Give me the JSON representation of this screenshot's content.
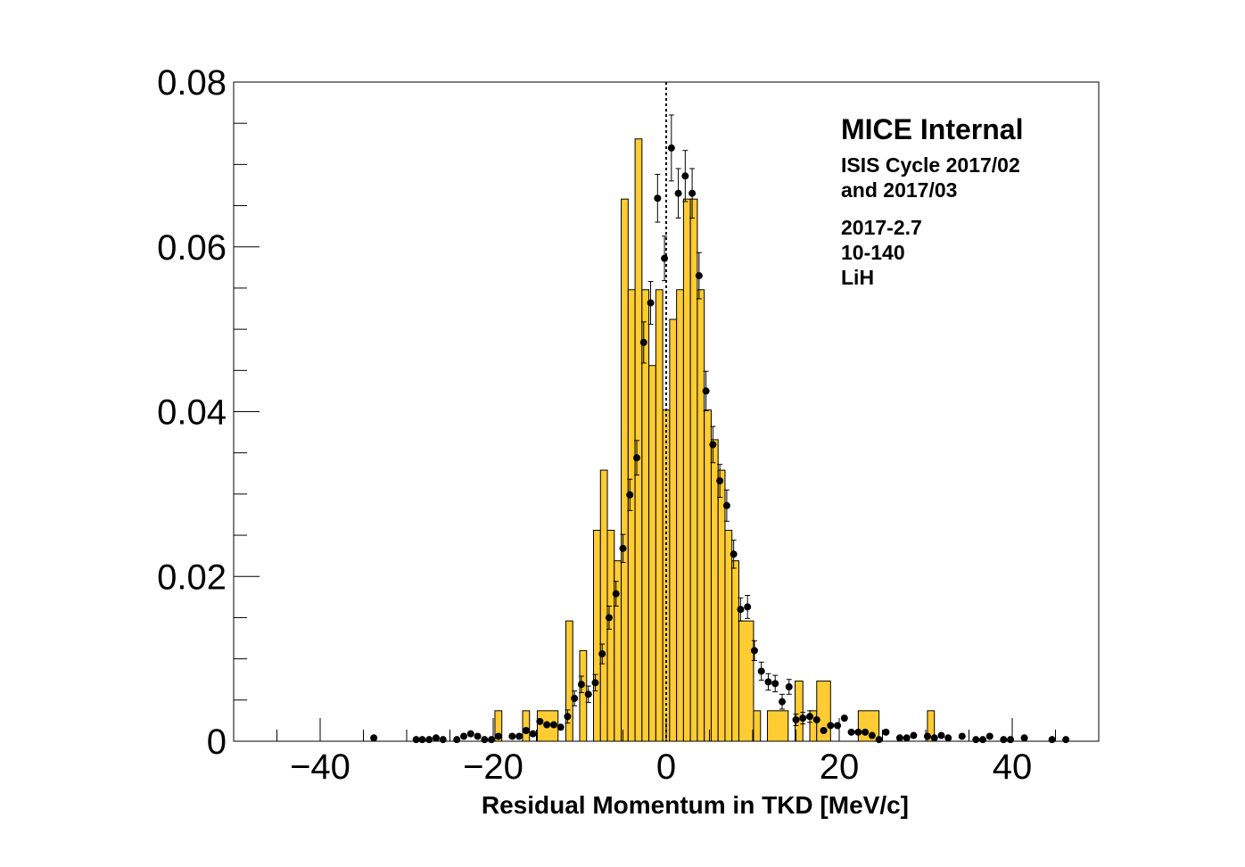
{
  "chart_data": {
    "type": "bar",
    "xlabel": "Residual Momentum in TKD [MeV/c]",
    "ylabel": "",
    "xlim": [
      -50,
      50
    ],
    "ylim": [
      0,
      0.08
    ],
    "x_ticks": [
      -40,
      -20,
      0,
      20,
      40
    ],
    "x_tick_labels": [
      "−40",
      "−20",
      "0",
      "20",
      "40"
    ],
    "y_ticks": [
      0,
      0.02,
      0.04,
      0.06,
      0.08
    ],
    "y_tick_labels": [
      "0",
      "0.02",
      "0.04",
      "0.06",
      "0.08"
    ],
    "grid": false,
    "reference_line_x": 0,
    "annotations": [
      "MICE Internal",
      "ISIS Cycle 2017/02",
      "and 2017/03",
      "2017-2.7",
      "10-140",
      "LiH"
    ],
    "histogram": {
      "color": "#ffcc33",
      "bins": [
        [
          -19.8,
          -19.0,
          0.0037
        ],
        [
          -16.6,
          -15.8,
          0.0037
        ],
        [
          -14.9,
          -12.5,
          0.0037
        ],
        [
          -11.6,
          -10.8,
          0.0146
        ],
        [
          -10.0,
          -9.2,
          0.011
        ],
        [
          -8.4,
          -7.6,
          0.0256
        ],
        [
          -7.6,
          -6.8,
          0.0329
        ],
        [
          -6.8,
          -6.0,
          0.0256
        ],
        [
          -6.0,
          -5.2,
          0.0219
        ],
        [
          -5.2,
          -4.4,
          0.0658
        ],
        [
          -4.4,
          -3.6,
          0.0548
        ],
        [
          -3.6,
          -2.8,
          0.0731
        ],
        [
          -2.8,
          -2.0,
          0.0548
        ],
        [
          -2.0,
          -1.2,
          0.0456
        ],
        [
          -1.2,
          -0.4,
          0.0548
        ],
        [
          -0.4,
          0.4,
          0.0402
        ],
        [
          0.4,
          1.2,
          0.0512
        ],
        [
          1.2,
          2.0,
          0.0548
        ],
        [
          2.0,
          2.8,
          0.0658
        ],
        [
          2.8,
          3.6,
          0.0658
        ],
        [
          3.6,
          4.4,
          0.0548
        ],
        [
          4.4,
          5.2,
          0.0402
        ],
        [
          5.2,
          6.0,
          0.0366
        ],
        [
          6.0,
          6.8,
          0.0329
        ],
        [
          6.8,
          7.6,
          0.0256
        ],
        [
          7.6,
          8.4,
          0.0219
        ],
        [
          8.4,
          10.1,
          0.0146
        ],
        [
          10.1,
          10.9,
          0.0037
        ],
        [
          11.7,
          14.1,
          0.0037
        ],
        [
          14.9,
          15.8,
          0.0073
        ],
        [
          16.6,
          17.4,
          0.0037
        ],
        [
          17.4,
          19.0,
          0.0073
        ],
        [
          22.2,
          24.6,
          0.0037
        ],
        [
          30.2,
          31.0,
          0.0037
        ]
      ]
    },
    "series": [
      {
        "marker": "black-circle-with-error-bars",
        "points": [
          [
            -33.8,
            0.0004,
            0
          ],
          [
            -28.9,
            0.0002,
            0
          ],
          [
            -28.2,
            0.0002,
            0
          ],
          [
            -27.4,
            0.0002,
            0
          ],
          [
            -26.6,
            0.0004,
            0
          ],
          [
            -25.8,
            0.0002,
            0
          ],
          [
            -24.2,
            0.0002,
            0
          ],
          [
            -23.4,
            0.0006,
            0
          ],
          [
            -22.6,
            0.0009,
            0
          ],
          [
            -21.8,
            0.0006,
            0
          ],
          [
            -21.0,
            0.0002,
            0
          ],
          [
            -20.2,
            0.0002,
            0
          ],
          [
            -19.4,
            0.0006,
            0
          ],
          [
            -17.8,
            0.0006,
            0
          ],
          [
            -17.0,
            0.0006,
            0
          ],
          [
            -16.2,
            0.0013,
            0
          ],
          [
            -15.4,
            0.0009,
            0
          ],
          [
            -14.6,
            0.0024,
            0
          ],
          [
            -13.8,
            0.002,
            0
          ],
          [
            -13.0,
            0.002,
            0
          ],
          [
            -12.2,
            0.0017,
            0
          ],
          [
            -11.4,
            0.003,
            0.0008
          ],
          [
            -10.6,
            0.0052,
            0.0009
          ],
          [
            -9.8,
            0.0069,
            0.001
          ],
          [
            -9.0,
            0.0057,
            0.001
          ],
          [
            -8.2,
            0.0071,
            0.001
          ],
          [
            -7.4,
            0.0106,
            0.0012
          ],
          [
            -6.6,
            0.015,
            0.0014
          ],
          [
            -5.8,
            0.0179,
            0.0015
          ],
          [
            -5.0,
            0.0234,
            0.0017
          ],
          [
            -4.2,
            0.0299,
            0.0019
          ],
          [
            -3.4,
            0.0344,
            0.0021
          ],
          [
            -2.6,
            0.0484,
            0.0025
          ],
          [
            -1.8,
            0.0532,
            0.0026
          ],
          [
            -1.0,
            0.0659,
            0.0029
          ],
          [
            -0.2,
            0.0586,
            0.0027
          ],
          [
            0.6,
            0.072,
            0.004
          ],
          [
            1.4,
            0.0665,
            0.003
          ],
          [
            2.2,
            0.0686,
            0.0031
          ],
          [
            3.0,
            0.0665,
            0.003
          ],
          [
            3.8,
            0.0565,
            0.0028
          ],
          [
            4.6,
            0.0425,
            0.0024
          ],
          [
            5.4,
            0.036,
            0.0022
          ],
          [
            6.2,
            0.0316,
            0.002
          ],
          [
            7.0,
            0.0286,
            0.0019
          ],
          [
            7.8,
            0.0227,
            0.0017
          ],
          [
            8.6,
            0.016,
            0.0014
          ],
          [
            9.4,
            0.0163,
            0.0014
          ],
          [
            10.2,
            0.011,
            0.0012
          ],
          [
            11.0,
            0.0085,
            0.0011
          ],
          [
            11.8,
            0.0072,
            0.001
          ],
          [
            12.6,
            0.007,
            0.001
          ],
          [
            13.4,
            0.0048,
            0.0009
          ],
          [
            14.2,
            0.0066,
            0.0009
          ],
          [
            15.0,
            0.0026,
            0.0007
          ],
          [
            15.8,
            0.0028,
            0.0007
          ],
          [
            16.6,
            0.003,
            0.0007
          ],
          [
            17.4,
            0.0026,
            0
          ],
          [
            18.2,
            0.0013,
            0
          ],
          [
            19.0,
            0.0019,
            0
          ],
          [
            19.8,
            0.0019,
            0
          ],
          [
            20.6,
            0.0028,
            0
          ],
          [
            21.4,
            0.0011,
            0
          ],
          [
            22.2,
            0.0011,
            0
          ],
          [
            23.0,
            0.0011,
            0
          ],
          [
            23.8,
            0.0007,
            0
          ],
          [
            24.6,
            0.0002,
            0
          ],
          [
            25.4,
            0.0011,
            0
          ],
          [
            27.0,
            0.0004,
            0
          ],
          [
            27.8,
            0.0004,
            0
          ],
          [
            28.6,
            0.0007,
            0
          ],
          [
            30.2,
            0.0006,
            0
          ],
          [
            31.0,
            0.0004,
            0
          ],
          [
            31.8,
            0.0007,
            0
          ],
          [
            32.6,
            0.0004,
            0
          ],
          [
            34.2,
            0.0006,
            0
          ],
          [
            35.8,
            0.0002,
            0
          ],
          [
            36.6,
            0.0002,
            0
          ],
          [
            37.4,
            0.0006,
            0
          ],
          [
            39.0,
            0.0002,
            0
          ],
          [
            39.8,
            0.0002,
            0
          ],
          [
            41.4,
            0.0004,
            0
          ],
          [
            44.6,
            0.0002,
            0
          ],
          [
            46.2,
            0.0002,
            0
          ]
        ]
      }
    ]
  }
}
